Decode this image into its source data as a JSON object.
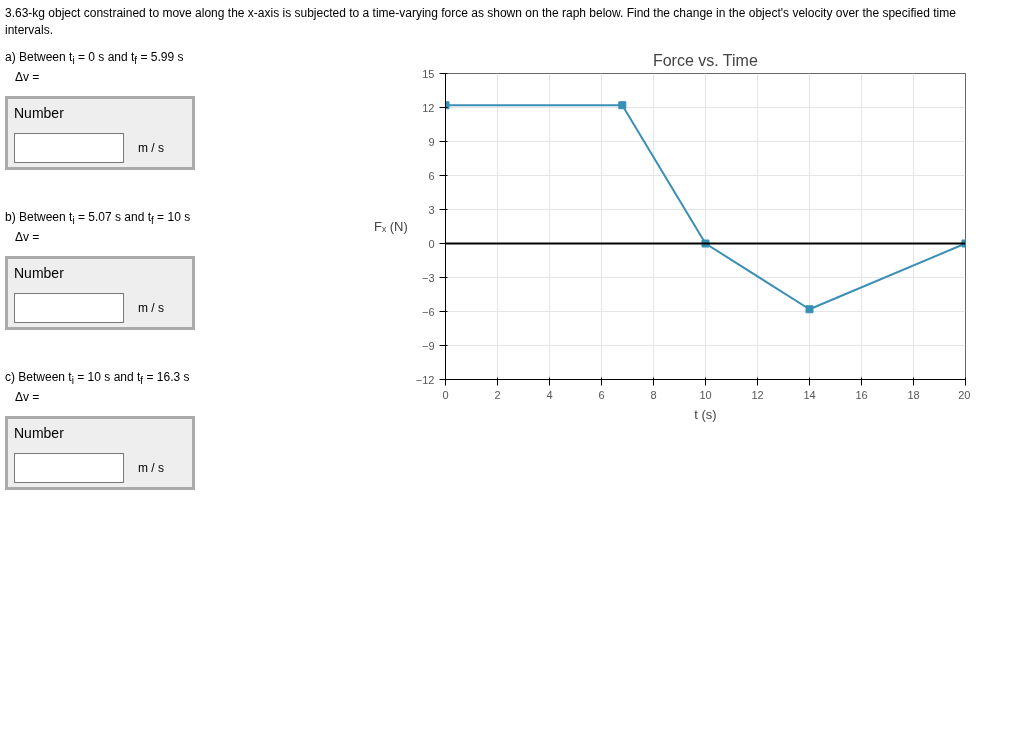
{
  "chart_data": {
    "type": "line",
    "title": "Force vs. Time",
    "xlabel": "t (s)",
    "ylabel": "Fₓ (N)",
    "x": [
      0,
      6.8,
      10,
      14,
      20
    ],
    "series": [
      {
        "color": "#3a8fb7",
        "values": [
          12.2,
          12.2,
          0,
          -5.8,
          0
        ]
      }
    ],
    "xlim": [
      0,
      20
    ],
    "xticks": [
      0,
      2,
      4,
      6,
      8,
      10,
      12,
      14,
      16,
      18,
      20
    ],
    "ylim": [
      -12,
      15
    ],
    "yticks": [
      -12,
      -9,
      -6,
      -3,
      0,
      3,
      6,
      9,
      12,
      15
    ],
    "ref_lines": [
      {
        "axis": "y",
        "value": 0,
        "color": "#000000"
      }
    ],
    "grid": true,
    "marker": "square",
    "line_style": "solid",
    "annotations": [
      "3.63-kg object constrained to move along the x-axis is subjected to a time-varying force as shown on the raph below.  Find the change in the object's velocity over the specified time intervals.",
      "a) Between t$_{i}$ = 0 s and t$_{f}$ = 5.99 s",
      "Number",
      "Δv =",
      "m / s",
      "b) Between t$_{i}$ = 5.07 s and t$_{f}$ = 10 s",
      "Number",
      "Δv =",
      "m / s",
      "c) Between t$_{i}$ = 10 s and t$_{f}$ = 16.3 s",
      "Number",
      "Δv =",
      "m / s"
    ]
  }
}
